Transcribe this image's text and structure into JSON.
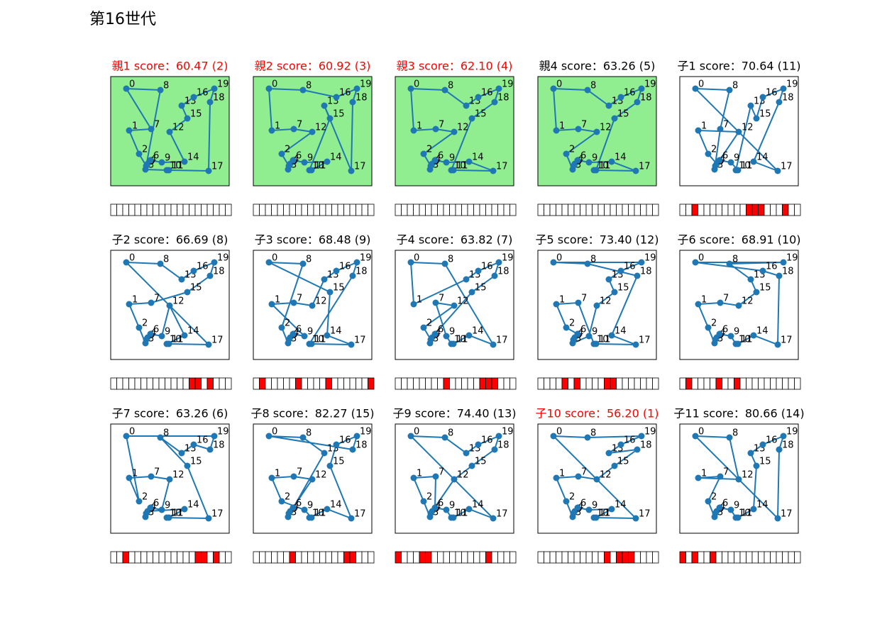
{
  "title": "第16世代",
  "cities": {
    "labels": [
      0,
      1,
      2,
      3,
      4,
      5,
      6,
      7,
      8,
      9,
      10,
      11,
      12,
      13,
      14,
      15,
      16,
      17,
      18,
      19
    ],
    "x": [
      22,
      26,
      40,
      49,
      52,
      50,
      56,
      57,
      70,
      72,
      79,
      82,
      83,
      100,
      104,
      108,
      117,
      138,
      140,
      146
    ],
    "y": [
      137,
      78,
      45,
      23,
      31,
      28,
      36,
      80,
      135,
      33,
      22,
      22,
      76,
      113,
      34,
      95,
      125,
      21,
      118,
      137
    ],
    "xlim": [
      0,
      167
    ],
    "ylim": [
      0,
      154
    ],
    "color": "#1f77b4"
  },
  "chart_data": [
    {
      "type": "route",
      "title": "親1 score：60.47 (2)",
      "title_color": "#ff0000",
      "background": "#90ee90",
      "route": [
        0,
        8,
        3,
        10,
        11,
        17,
        18,
        19,
        16,
        13,
        15,
        12,
        14,
        9,
        6,
        4,
        5,
        2,
        1,
        7
      ],
      "mutated": [
        0,
        0,
        0,
        0,
        0,
        0,
        0,
        0,
        0,
        0,
        0,
        0,
        0,
        0,
        0,
        0,
        0,
        0,
        0,
        0
      ]
    },
    {
      "type": "route",
      "title": "親2 score：60.92 (3)",
      "title_color": "#ff0000",
      "background": "#90ee90",
      "route": [
        0,
        8,
        16,
        19,
        18,
        17,
        13,
        15,
        10,
        11,
        14,
        9,
        6,
        4,
        3,
        5,
        2,
        12,
        7,
        1
      ],
      "mutated": [
        0,
        0,
        0,
        0,
        0,
        0,
        0,
        0,
        0,
        0,
        0,
        0,
        0,
        0,
        0,
        0,
        0,
        0,
        0,
        0
      ]
    },
    {
      "type": "route",
      "title": "親3 score：62.10 (4)",
      "title_color": "#ff0000",
      "background": "#90ee90",
      "route": [
        0,
        8,
        13,
        16,
        19,
        18,
        15,
        10,
        11,
        17,
        14,
        9,
        6,
        4,
        3,
        5,
        2,
        12,
        7,
        1
      ],
      "mutated": [
        0,
        0,
        0,
        0,
        0,
        0,
        0,
        0,
        0,
        0,
        0,
        0,
        0,
        0,
        0,
        0,
        0,
        0,
        0,
        0
      ]
    },
    {
      "type": "route",
      "title": "親4 score：63.26 (5)",
      "title_color": "#000000",
      "background": "#90ee90",
      "route": [
        0,
        8,
        13,
        16,
        19,
        18,
        15,
        11,
        10,
        17,
        14,
        9,
        6,
        4,
        5,
        3,
        2,
        12,
        7,
        1
      ],
      "mutated": [
        0,
        0,
        0,
        0,
        0,
        0,
        0,
        0,
        0,
        0,
        0,
        0,
        0,
        0,
        0,
        0,
        0,
        0,
        0,
        0
      ]
    },
    {
      "type": "route",
      "title": "子1 score：70.64 (11)",
      "title_color": "#000000",
      "background": "#ffffff",
      "route": [
        0,
        8,
        7,
        3,
        5,
        4,
        2,
        1,
        12,
        6,
        9,
        11,
        10,
        13,
        15,
        16,
        19,
        18,
        14,
        17
      ],
      "mutated": [
        0,
        0,
        1,
        0,
        0,
        0,
        0,
        0,
        0,
        0,
        0,
        1,
        1,
        1,
        0,
        0,
        0,
        1,
        0,
        0
      ]
    },
    {
      "type": "route",
      "title": "子2 score：66.69 (8)",
      "title_color": "#000000",
      "background": "#ffffff",
      "route": [
        0,
        8,
        13,
        16,
        19,
        18,
        15,
        7,
        1,
        2,
        3,
        4,
        5,
        6,
        9,
        12,
        14,
        10,
        11,
        17
      ],
      "mutated": [
        0,
        0,
        0,
        0,
        0,
        0,
        0,
        0,
        0,
        0,
        0,
        0,
        0,
        1,
        1,
        0,
        1,
        0,
        0,
        0
      ]
    },
    {
      "type": "route",
      "title": "子3 score：68.48 (9)",
      "title_color": "#000000",
      "background": "#ffffff",
      "route": [
        0,
        8,
        2,
        3,
        4,
        5,
        6,
        9,
        1,
        7,
        12,
        13,
        16,
        19,
        18,
        10,
        11,
        17,
        14,
        15
      ],
      "mutated": [
        0,
        1,
        0,
        0,
        0,
        0,
        0,
        1,
        0,
        0,
        0,
        0,
        1,
        0,
        0,
        0,
        0,
        0,
        0,
        1
      ]
    },
    {
      "type": "route",
      "title": "子4 score：63.82 (7)",
      "title_color": "#000000",
      "background": "#ffffff",
      "route": [
        0,
        1,
        13,
        16,
        19,
        18,
        15,
        6,
        3,
        4,
        5,
        2,
        12,
        7,
        9,
        10,
        11,
        14,
        17,
        8
      ],
      "mutated": [
        0,
        0,
        0,
        0,
        0,
        0,
        0,
        0,
        1,
        0,
        0,
        0,
        0,
        0,
        1,
        1,
        1,
        0,
        0,
        0
      ]
    },
    {
      "type": "route",
      "title": "子5 score：73.40 (12)",
      "title_color": "#000000",
      "background": "#ffffff",
      "route": [
        0,
        19,
        16,
        13,
        15,
        12,
        9,
        3,
        4,
        5,
        6,
        2,
        1,
        7,
        10,
        11,
        17,
        14,
        18,
        8
      ],
      "mutated": [
        0,
        0,
        0,
        0,
        1,
        0,
        1,
        0,
        0,
        0,
        0,
        1,
        1,
        0,
        0,
        0,
        0,
        0,
        0,
        0
      ]
    },
    {
      "type": "route",
      "title": "子6 score：68.91 (10)",
      "title_color": "#000000",
      "background": "#ffffff",
      "route": [
        0,
        19,
        8,
        13,
        15,
        12,
        7,
        1,
        2,
        3,
        4,
        5,
        6,
        9,
        10,
        11,
        14,
        17,
        18,
        16
      ],
      "mutated": [
        0,
        1,
        0,
        0,
        0,
        0,
        1,
        0,
        0,
        1,
        0,
        0,
        0,
        0,
        0,
        0,
        0,
        0,
        0,
        0
      ]
    },
    {
      "type": "route",
      "title": "子7 score：63.26 (6)",
      "title_color": "#000000",
      "background": "#ffffff",
      "route": [
        0,
        19,
        18,
        16,
        13,
        8,
        15,
        17,
        10,
        11,
        14,
        4,
        3,
        5,
        6,
        9,
        12,
        7,
        1,
        2
      ],
      "mutated": [
        0,
        0,
        1,
        0,
        0,
        0,
        0,
        0,
        0,
        0,
        0,
        0,
        0,
        0,
        1,
        1,
        0,
        1,
        0,
        0
      ]
    },
    {
      "type": "route",
      "title": "子8 score：82.27 (15)",
      "title_color": "#000000",
      "background": "#ffffff",
      "route": [
        0,
        8,
        13,
        3,
        4,
        5,
        6,
        12,
        7,
        1,
        2,
        9,
        11,
        10,
        14,
        17,
        15,
        16,
        19,
        18
      ],
      "mutated": [
        0,
        0,
        0,
        0,
        0,
        0,
        1,
        0,
        0,
        0,
        0,
        0,
        0,
        0,
        0,
        1,
        1,
        0,
        0,
        0
      ]
    },
    {
      "type": "route",
      "title": "子9 score：74.40 (13)",
      "title_color": "#000000",
      "background": "#ffffff",
      "route": [
        0,
        8,
        13,
        16,
        19,
        18,
        15,
        12,
        4,
        5,
        3,
        2,
        1,
        7,
        6,
        9,
        10,
        11,
        14,
        17
      ],
      "mutated": [
        1,
        0,
        0,
        0,
        1,
        1,
        0,
        0,
        0,
        0,
        0,
        0,
        0,
        0,
        0,
        1,
        0,
        0,
        0,
        0
      ]
    },
    {
      "type": "route",
      "title": "子10 score：56.20 (1)",
      "title_color": "#ff0000",
      "background": "#ffffff",
      "route": [
        0,
        8,
        19,
        16,
        13,
        18,
        15,
        12,
        7,
        1,
        2,
        3,
        4,
        5,
        6,
        9,
        14,
        11,
        10,
        17
      ],
      "mutated": [
        0,
        0,
        0,
        0,
        0,
        0,
        0,
        0,
        0,
        0,
        0,
        1,
        0,
        1,
        1,
        1,
        0,
        0,
        0,
        0
      ]
    },
    {
      "type": "route",
      "title": "子11 score：80.66 (14)",
      "title_color": "#000000",
      "background": "#ffffff",
      "route": [
        0,
        8,
        12,
        1,
        7,
        2,
        3,
        4,
        5,
        6,
        9,
        10,
        11,
        14,
        15,
        13,
        16,
        19,
        18,
        17
      ],
      "mutated": [
        1,
        0,
        1,
        0,
        0,
        1,
        0,
        0,
        0,
        0,
        0,
        0,
        0,
        0,
        0,
        0,
        0,
        0,
        0,
        0
      ]
    }
  ]
}
